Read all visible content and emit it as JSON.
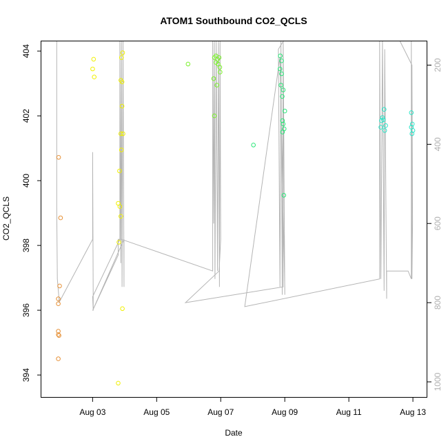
{
  "chart_data": {
    "type": "scatter",
    "title": "ATOM1 Southbound CO2_QCLS",
    "xlabel": "Date",
    "ylabel": "CO2_QCLS",
    "x_ticks": [
      "Aug 03",
      "Aug 05",
      "Aug 07",
      "Aug 09",
      "Aug 11",
      "Aug 13"
    ],
    "x_tick_values": [
      3,
      5,
      7,
      9,
      11,
      13
    ],
    "xlim": [
      1.4,
      13.45
    ],
    "y_ticks": [
      394,
      396,
      398,
      400,
      402,
      404
    ],
    "ylim": [
      393.3,
      404.3
    ],
    "y2_ticks": [
      200,
      400,
      600,
      800,
      1000
    ],
    "y2lim": [
      1040,
      140
    ],
    "grid": false,
    "series_colors": [
      "#e69138",
      "#f0f000",
      "#78f028",
      "#28e678",
      "#28e6c8"
    ],
    "points": [
      {
        "x": 1.94,
        "y": 400.72,
        "c": 0
      },
      {
        "x": 2.0,
        "y": 398.85,
        "c": 0
      },
      {
        "x": 1.97,
        "y": 396.75,
        "c": 0
      },
      {
        "x": 1.93,
        "y": 396.35,
        "c": 0
      },
      {
        "x": 1.93,
        "y": 396.2,
        "c": 0
      },
      {
        "x": 1.93,
        "y": 395.35,
        "c": 0
      },
      {
        "x": 1.93,
        "y": 395.25,
        "c": 0
      },
      {
        "x": 1.95,
        "y": 395.22,
        "c": 0
      },
      {
        "x": 1.93,
        "y": 394.5,
        "c": 0
      },
      {
        "x": 3.03,
        "y": 403.75,
        "c": 1
      },
      {
        "x": 3.0,
        "y": 403.45,
        "c": 1
      },
      {
        "x": 3.05,
        "y": 403.2,
        "c": 1
      },
      {
        "x": 3.94,
        "y": 403.95,
        "c": 1
      },
      {
        "x": 3.9,
        "y": 403.8,
        "c": 1
      },
      {
        "x": 3.88,
        "y": 403.1,
        "c": 1
      },
      {
        "x": 3.92,
        "y": 403.05,
        "c": 1
      },
      {
        "x": 3.92,
        "y": 402.3,
        "c": 1
      },
      {
        "x": 3.88,
        "y": 401.45,
        "c": 1
      },
      {
        "x": 3.95,
        "y": 401.45,
        "c": 1
      },
      {
        "x": 3.9,
        "y": 400.95,
        "c": 1
      },
      {
        "x": 3.84,
        "y": 400.3,
        "c": 1
      },
      {
        "x": 3.8,
        "y": 399.3,
        "c": 1
      },
      {
        "x": 3.85,
        "y": 399.2,
        "c": 1
      },
      {
        "x": 3.88,
        "y": 398.9,
        "c": 1
      },
      {
        "x": 3.82,
        "y": 398.1,
        "c": 1
      },
      {
        "x": 3.93,
        "y": 396.05,
        "c": 1
      },
      {
        "x": 3.8,
        "y": 393.75,
        "c": 1
      },
      {
        "x": 5.98,
        "y": 403.6,
        "c": 2
      },
      {
        "x": 6.8,
        "y": 403.8,
        "c": 2
      },
      {
        "x": 6.85,
        "y": 403.85,
        "c": 2
      },
      {
        "x": 6.9,
        "y": 403.75,
        "c": 2
      },
      {
        "x": 6.95,
        "y": 403.8,
        "c": 2
      },
      {
        "x": 6.85,
        "y": 403.65,
        "c": 2
      },
      {
        "x": 6.92,
        "y": 403.6,
        "c": 2
      },
      {
        "x": 6.97,
        "y": 403.5,
        "c": 2
      },
      {
        "x": 6.98,
        "y": 403.35,
        "c": 2
      },
      {
        "x": 6.78,
        "y": 403.15,
        "c": 2
      },
      {
        "x": 6.88,
        "y": 402.95,
        "c": 2
      },
      {
        "x": 6.8,
        "y": 402.0,
        "c": 2
      },
      {
        "x": 8.02,
        "y": 401.1,
        "c": 3
      },
      {
        "x": 8.86,
        "y": 403.85,
        "c": 3
      },
      {
        "x": 8.9,
        "y": 403.7,
        "c": 3
      },
      {
        "x": 8.85,
        "y": 403.45,
        "c": 3
      },
      {
        "x": 8.9,
        "y": 403.3,
        "c": 3
      },
      {
        "x": 8.88,
        "y": 402.95,
        "c": 3
      },
      {
        "x": 8.95,
        "y": 402.8,
        "c": 3
      },
      {
        "x": 8.92,
        "y": 402.6,
        "c": 3
      },
      {
        "x": 9.0,
        "y": 402.15,
        "c": 3
      },
      {
        "x": 8.93,
        "y": 401.85,
        "c": 3
      },
      {
        "x": 8.95,
        "y": 401.75,
        "c": 3
      },
      {
        "x": 8.98,
        "y": 401.6,
        "c": 3
      },
      {
        "x": 8.93,
        "y": 401.5,
        "c": 3
      },
      {
        "x": 8.97,
        "y": 399.55,
        "c": 3
      },
      {
        "x": 12.1,
        "y": 402.2,
        "c": 4
      },
      {
        "x": 12.05,
        "y": 401.95,
        "c": 4
      },
      {
        "x": 12.02,
        "y": 401.85,
        "c": 4
      },
      {
        "x": 12.08,
        "y": 401.88,
        "c": 4
      },
      {
        "x": 12.15,
        "y": 401.7,
        "c": 4
      },
      {
        "x": 12.0,
        "y": 401.65,
        "c": 4
      },
      {
        "x": 12.12,
        "y": 401.55,
        "c": 4
      },
      {
        "x": 12.95,
        "y": 402.1,
        "c": 4
      },
      {
        "x": 12.98,
        "y": 401.75,
        "c": 4
      },
      {
        "x": 12.95,
        "y": 401.65,
        "c": 4
      },
      {
        "x": 13.0,
        "y": 401.55,
        "c": 4
      },
      {
        "x": 12.97,
        "y": 401.45,
        "c": 4
      }
    ],
    "altitude_line": [
      [
        1.88,
        140
      ],
      [
        1.88,
        560
      ],
      [
        1.9,
        740
      ],
      [
        1.95,
        790
      ],
      [
        1.95,
        800
      ],
      [
        3.0,
        640
      ],
      [
        3.0,
        420
      ],
      [
        3.02,
        820
      ],
      [
        3.0,
        785
      ],
      [
        3.85,
        640
      ],
      [
        3.85,
        140
      ],
      [
        3.88,
        700
      ],
      [
        3.9,
        140
      ],
      [
        3.92,
        760
      ],
      [
        3.95,
        140
      ],
      [
        3.98,
        760
      ],
      [
        3.98,
        640
      ],
      [
        3.0,
        820
      ],
      [
        3.8,
        680
      ],
      [
        3.8,
        640
      ],
      [
        3.9,
        640
      ],
      [
        6.75,
        720
      ],
      [
        6.75,
        140
      ],
      [
        6.78,
        600
      ],
      [
        6.8,
        140
      ],
      [
        6.82,
        740
      ],
      [
        6.86,
        140
      ],
      [
        6.9,
        720
      ],
      [
        6.93,
        140
      ],
      [
        6.96,
        760
      ],
      [
        6.98,
        140
      ],
      [
        7.0,
        640
      ],
      [
        6.95,
        720
      ],
      [
        5.9,
        800
      ],
      [
        5.9,
        800
      ],
      [
        8.95,
        760
      ],
      [
        8.95,
        140
      ],
      [
        8.8,
        160
      ],
      [
        8.85,
        760
      ],
      [
        8.88,
        140
      ],
      [
        8.92,
        780
      ],
      [
        8.95,
        140
      ],
      [
        9.0,
        780
      ],
      [
        9.0,
        760
      ],
      [
        8.85,
        180
      ],
      [
        7.75,
        810
      ],
      [
        7.75,
        810
      ],
      [
        11.96,
        740
      ],
      [
        11.96,
        140
      ],
      [
        12.0,
        740
      ],
      [
        12.05,
        140
      ],
      [
        12.1,
        770
      ],
      [
        12.12,
        160
      ],
      [
        12.18,
        790
      ],
      [
        12.18,
        720
      ],
      [
        12.85,
        720
      ],
      [
        12.95,
        740
      ],
      [
        12.95,
        140
      ],
      [
        12.97,
        740
      ],
      [
        12.99,
        600
      ],
      [
        12.97,
        200
      ],
      [
        12.6,
        140
      ]
    ]
  }
}
